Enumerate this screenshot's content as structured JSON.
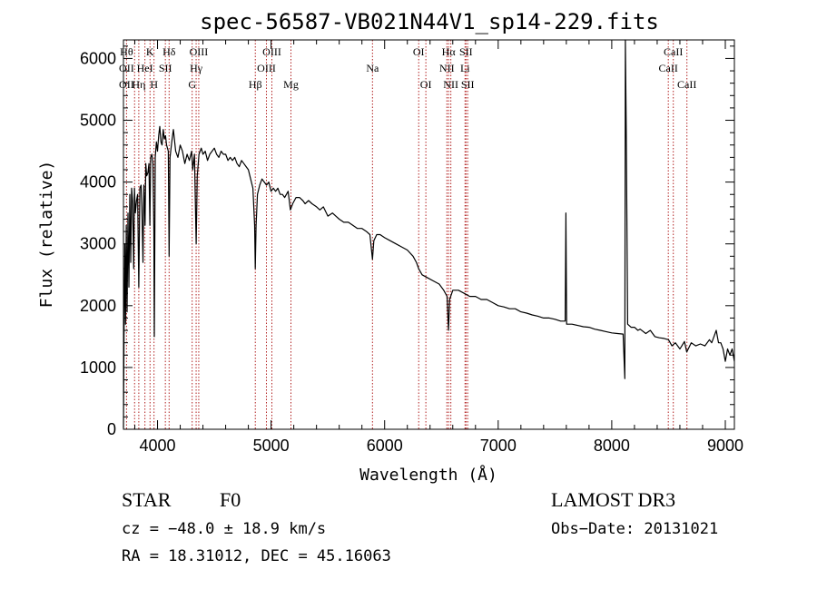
{
  "chart_data": {
    "type": "line",
    "title": "spec-56587-VB021N44V1_sp14-229.fits",
    "xlabel": "Wavelength (Å)",
    "ylabel": "Flux (relative)",
    "xlim": [
      3700,
      9080
    ],
    "ylim": [
      0,
      6300
    ],
    "xticks": [
      4000,
      5000,
      6000,
      7000,
      8000,
      9000
    ],
    "yticks": [
      0,
      1000,
      2000,
      3000,
      4000,
      5000,
      6000
    ],
    "series": [
      {
        "name": "spectrum",
        "points": [
          [
            3700,
            20
          ],
          [
            3705,
            1500
          ],
          [
            3712,
            3000
          ],
          [
            3718,
            1700
          ],
          [
            3725,
            3300
          ],
          [
            3732,
            1900
          ],
          [
            3740,
            3500
          ],
          [
            3748,
            2300
          ],
          [
            3756,
            3800
          ],
          [
            3764,
            2700
          ],
          [
            3772,
            3900
          ],
          [
            3780,
            3700
          ],
          [
            3790,
            2600
          ],
          [
            3797,
            3900
          ],
          [
            3805,
            3500
          ],
          [
            3815,
            3700
          ],
          [
            3825,
            3800
          ],
          [
            3835,
            2300
          ],
          [
            3845,
            3900
          ],
          [
            3855,
            3950
          ],
          [
            3862,
            3600
          ],
          [
            3872,
            2700
          ],
          [
            3880,
            3950
          ],
          [
            3890,
            3300
          ],
          [
            3897,
            4300
          ],
          [
            3905,
            4100
          ],
          [
            3915,
            4150
          ],
          [
            3925,
            4300
          ],
          [
            3933,
            3300
          ],
          [
            3940,
            4400
          ],
          [
            3950,
            4450
          ],
          [
            3960,
            4300
          ],
          [
            3968,
            3200
          ],
          [
            3972,
            1500
          ],
          [
            3980,
            4400
          ],
          [
            3990,
            4650
          ],
          [
            4000,
            4500
          ],
          [
            4010,
            4750
          ],
          [
            4020,
            4900
          ],
          [
            4030,
            4650
          ],
          [
            4040,
            4600
          ],
          [
            4050,
            4850
          ],
          [
            4060,
            4700
          ],
          [
            4070,
            4750
          ],
          [
            4080,
            4600
          ],
          [
            4095,
            4500
          ],
          [
            4102,
            2800
          ],
          [
            4110,
            4400
          ],
          [
            4125,
            4650
          ],
          [
            4140,
            4850
          ],
          [
            4160,
            4500
          ],
          [
            4180,
            4400
          ],
          [
            4200,
            4600
          ],
          [
            4220,
            4500
          ],
          [
            4240,
            4300
          ],
          [
            4260,
            4450
          ],
          [
            4280,
            4350
          ],
          [
            4300,
            4500
          ],
          [
            4310,
            4200
          ],
          [
            4325,
            4450
          ],
          [
            4340,
            3000
          ],
          [
            4350,
            4100
          ],
          [
            4365,
            4450
          ],
          [
            4385,
            4550
          ],
          [
            4400,
            4450
          ],
          [
            4420,
            4500
          ],
          [
            4440,
            4350
          ],
          [
            4460,
            4450
          ],
          [
            4480,
            4500
          ],
          [
            4500,
            4550
          ],
          [
            4520,
            4450
          ],
          [
            4540,
            4400
          ],
          [
            4560,
            4500
          ],
          [
            4580,
            4450
          ],
          [
            4600,
            4450
          ],
          [
            4620,
            4350
          ],
          [
            4640,
            4400
          ],
          [
            4660,
            4350
          ],
          [
            4680,
            4400
          ],
          [
            4700,
            4300
          ],
          [
            4720,
            4250
          ],
          [
            4740,
            4350
          ],
          [
            4760,
            4300
          ],
          [
            4780,
            4250
          ],
          [
            4800,
            4200
          ],
          [
            4820,
            4050
          ],
          [
            4840,
            3900
          ],
          [
            4855,
            3300
          ],
          [
            4861,
            2600
          ],
          [
            4868,
            3300
          ],
          [
            4880,
            3800
          ],
          [
            4900,
            3950
          ],
          [
            4920,
            4050
          ],
          [
            4940,
            4000
          ],
          [
            4960,
            3950
          ],
          [
            4980,
            4000
          ],
          [
            5000,
            3850
          ],
          [
            5020,
            3900
          ],
          [
            5040,
            3850
          ],
          [
            5060,
            3900
          ],
          [
            5080,
            3800
          ],
          [
            5100,
            3800
          ],
          [
            5120,
            3750
          ],
          [
            5150,
            3850
          ],
          [
            5170,
            3550
          ],
          [
            5190,
            3650
          ],
          [
            5220,
            3750
          ],
          [
            5250,
            3750
          ],
          [
            5280,
            3700
          ],
          [
            5300,
            3650
          ],
          [
            5330,
            3700
          ],
          [
            5360,
            3650
          ],
          [
            5400,
            3600
          ],
          [
            5430,
            3550
          ],
          [
            5460,
            3600
          ],
          [
            5500,
            3450
          ],
          [
            5540,
            3500
          ],
          [
            5570,
            3450
          ],
          [
            5600,
            3400
          ],
          [
            5640,
            3350
          ],
          [
            5680,
            3350
          ],
          [
            5720,
            3300
          ],
          [
            5760,
            3250
          ],
          [
            5800,
            3250
          ],
          [
            5840,
            3200
          ],
          [
            5870,
            3150
          ],
          [
            5893,
            2750
          ],
          [
            5905,
            3050
          ],
          [
            5930,
            3150
          ],
          [
            5960,
            3150
          ],
          [
            6000,
            3100
          ],
          [
            6050,
            3050
          ],
          [
            6100,
            3000
          ],
          [
            6150,
            2950
          ],
          [
            6200,
            2900
          ],
          [
            6250,
            2800
          ],
          [
            6280,
            2700
          ],
          [
            6300,
            2600
          ],
          [
            6330,
            2500
          ],
          [
            6380,
            2450
          ],
          [
            6430,
            2400
          ],
          [
            6480,
            2350
          ],
          [
            6520,
            2250
          ],
          [
            6550,
            2150
          ],
          [
            6563,
            1600
          ],
          [
            6572,
            2100
          ],
          [
            6600,
            2250
          ],
          [
            6650,
            2250
          ],
          [
            6700,
            2200
          ],
          [
            6750,
            2150
          ],
          [
            6800,
            2150
          ],
          [
            6850,
            2100
          ],
          [
            6900,
            2100
          ],
          [
            6950,
            2050
          ],
          [
            7000,
            2000
          ],
          [
            7050,
            1980
          ],
          [
            7100,
            1950
          ],
          [
            7150,
            1950
          ],
          [
            7200,
            1900
          ],
          [
            7250,
            1880
          ],
          [
            7300,
            1850
          ],
          [
            7350,
            1830
          ],
          [
            7400,
            1800
          ],
          [
            7450,
            1800
          ],
          [
            7500,
            1780
          ],
          [
            7550,
            1750
          ],
          [
            7590,
            1750
          ],
          [
            7596,
            3500
          ],
          [
            7603,
            1700
          ],
          [
            7650,
            1700
          ],
          [
            7700,
            1680
          ],
          [
            7750,
            1660
          ],
          [
            7800,
            1650
          ],
          [
            7850,
            1620
          ],
          [
            7900,
            1600
          ],
          [
            7950,
            1580
          ],
          [
            8000,
            1560
          ],
          [
            8050,
            1550
          ],
          [
            8100,
            1540
          ],
          [
            8115,
            820
          ],
          [
            8120,
            6300
          ],
          [
            8128,
            4800
          ],
          [
            8140,
            1700
          ],
          [
            8170,
            1650
          ],
          [
            8200,
            1650
          ],
          [
            8230,
            1600
          ],
          [
            8250,
            1620
          ],
          [
            8300,
            1550
          ],
          [
            8340,
            1600
          ],
          [
            8380,
            1500
          ],
          [
            8420,
            1480
          ],
          [
            8460,
            1470
          ],
          [
            8500,
            1450
          ],
          [
            8530,
            1350
          ],
          [
            8560,
            1400
          ],
          [
            8600,
            1300
          ],
          [
            8640,
            1420
          ],
          [
            8660,
            1250
          ],
          [
            8700,
            1400
          ],
          [
            8740,
            1350
          ],
          [
            8780,
            1380
          ],
          [
            8820,
            1350
          ],
          [
            8860,
            1450
          ],
          [
            8880,
            1400
          ],
          [
            8900,
            1500
          ],
          [
            8920,
            1600
          ],
          [
            8940,
            1400
          ],
          [
            8960,
            1400
          ],
          [
            8980,
            1300
          ],
          [
            9000,
            1100
          ],
          [
            9020,
            1300
          ],
          [
            9040,
            1200
          ],
          [
            9060,
            1300
          ],
          [
            9080,
            1100
          ]
        ]
      }
    ],
    "lines": [
      {
        "rows": [
          "Hθ",
          "OII",
          "OII"
        ],
        "x": 3727
      },
      {
        "rows": [
          "",
          "",
          "Hη"
        ],
        "x": 3835
      },
      {
        "rows": [
          "",
          "HeI",
          ""
        ],
        "x": 3889
      },
      {
        "rows": [
          "K",
          "",
          ""
        ],
        "x": 3934
      },
      {
        "rows": [
          "",
          "SII",
          "H"
        ],
        "x": 3969
      },
      {
        "rows": [
          "Hδ",
          "",
          ""
        ],
        "x": 4102
      },
      {
        "rows": [
          "OIII",
          "Hγ",
          "G"
        ],
        "x": 4340
      },
      {
        "rows": [
          "",
          "",
          "Hβ"
        ],
        "x": 4861
      },
      {
        "rows": [
          "OIII",
          "OIII",
          ""
        ],
        "x": 5007
      },
      {
        "rows": [
          "",
          "",
          "Mg"
        ],
        "x": 5175
      },
      {
        "rows": [
          "",
          "Na",
          ""
        ],
        "x": 5893
      },
      {
        "rows": [
          "OI",
          "",
          "OI"
        ],
        "x": 6300
      },
      {
        "rows": [
          "Hα",
          "NII",
          "NII"
        ],
        "x": 6563
      },
      {
        "rows": [
          "SII",
          "Li",
          "SII"
        ],
        "x": 6716
      },
      {
        "rows": [
          "CaII",
          "CaII",
          "CaII"
        ],
        "x": 8542
      }
    ],
    "line_labels": [
      {
        "text": "Hθ",
        "x": 3727,
        "row": 0
      },
      {
        "text": "OII",
        "x": 3727,
        "row": 1
      },
      {
        "text": "OII",
        "x": 3727,
        "row": 2
      },
      {
        "text": "Hη",
        "x": 3835,
        "row": 2
      },
      {
        "text": "HeI",
        "x": 3889,
        "row": 1
      },
      {
        "text": "K",
        "x": 3934,
        "row": 0
      },
      {
        "text": "SII",
        "x": 4069,
        "row": 1
      },
      {
        "text": "H",
        "x": 3969,
        "row": 2
      },
      {
        "text": "Hδ",
        "x": 4102,
        "row": 0
      },
      {
        "text": "OIII",
        "x": 4363,
        "row": 0
      },
      {
        "text": "Hγ",
        "x": 4340,
        "row": 1
      },
      {
        "text": "G",
        "x": 4305,
        "row": 2
      },
      {
        "text": "Hβ",
        "x": 4861,
        "row": 2
      },
      {
        "text": "OIII",
        "x": 5007,
        "row": 0
      },
      {
        "text": "OIII",
        "x": 4959,
        "row": 1
      },
      {
        "text": "Mg",
        "x": 5175,
        "row": 2
      },
      {
        "text": "Na",
        "x": 5893,
        "row": 1
      },
      {
        "text": "OI",
        "x": 6300,
        "row": 0
      },
      {
        "text": "OI",
        "x": 6363,
        "row": 2
      },
      {
        "text": "Hα",
        "x": 6563,
        "row": 0
      },
      {
        "text": "NII",
        "x": 6548,
        "row": 1
      },
      {
        "text": "NII",
        "x": 6583,
        "row": 2
      },
      {
        "text": "SII",
        "x": 6716,
        "row": 0
      },
      {
        "text": "Li",
        "x": 6708,
        "row": 1
      },
      {
        "text": "SII",
        "x": 6731,
        "row": 2
      },
      {
        "text": "CaII",
        "x": 8542,
        "row": 0
      },
      {
        "text": "CaII",
        "x": 8498,
        "row": 1
      },
      {
        "text": "CaII",
        "x": 8662,
        "row": 2
      }
    ],
    "line_markers": [
      3727,
      3798,
      3835,
      3889,
      3934,
      3969,
      4069,
      4102,
      4305,
      4340,
      4363,
      4861,
      4959,
      5007,
      5175,
      5893,
      6300,
      6363,
      6548,
      6563,
      6583,
      6708,
      6716,
      6731,
      8498,
      8542,
      8662
    ]
  },
  "info": {
    "object_class": "STAR",
    "subclass": "F0",
    "survey": "LAMOST DR3",
    "cz": "cz = −48.0 ± 18.9 km/s",
    "obs_date": "Obs−Date: 20131021",
    "coords": "RA =  18.31012, DEC =  45.16063"
  },
  "colors": {
    "line_marker": "#b22222",
    "spectrum": "#000000",
    "axes": "#000000"
  }
}
